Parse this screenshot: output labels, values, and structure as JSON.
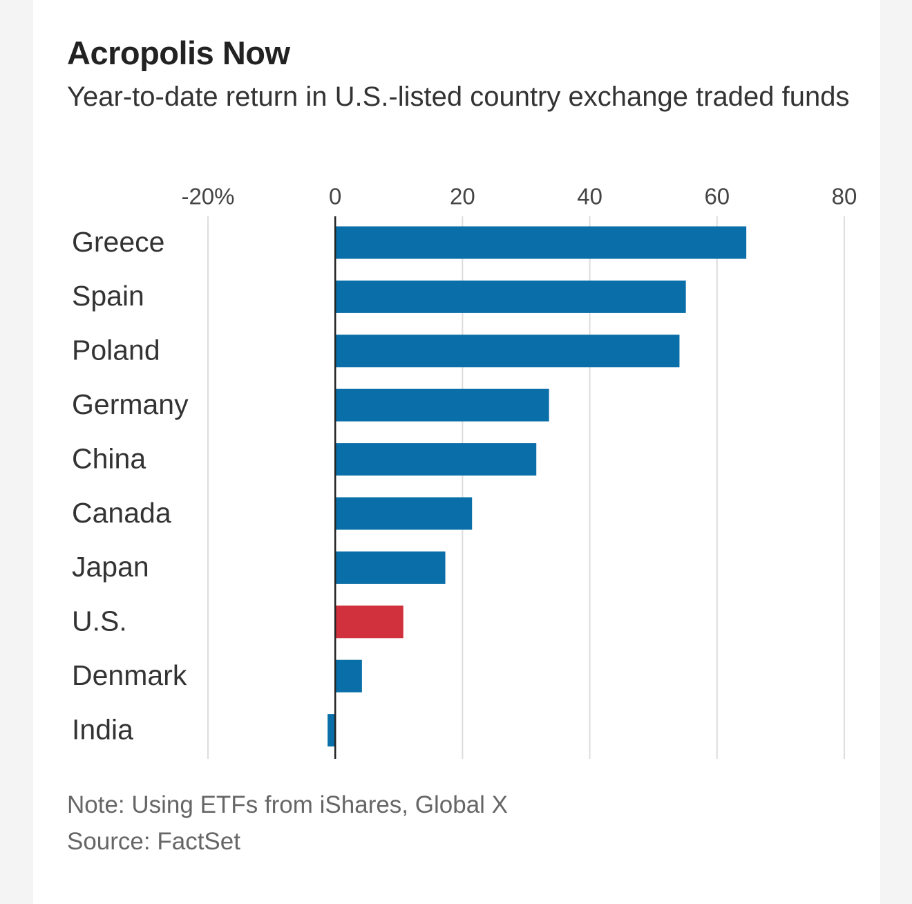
{
  "title": "Acropolis Now",
  "subtitle": "Year-to-date return in U.S.-listed country exchange traded funds",
  "note": "Note: Using ETFs from iShares, Global X",
  "source": "Source: FactSet",
  "chart_data": {
    "type": "bar",
    "orientation": "horizontal",
    "title": "Acropolis Now",
    "subtitle": "Year-to-date return in U.S.-listed country exchange traded funds",
    "categories": [
      "Greece",
      "Spain",
      "Poland",
      "Germany",
      "China",
      "Canada",
      "Japan",
      "U.S.",
      "Denmark",
      "India"
    ],
    "values": [
      64.6,
      55.1,
      54.1,
      33.6,
      31.6,
      21.5,
      17.3,
      10.7,
      4.2,
      -1.2
    ],
    "bar_colors": [
      "#0a6fa8",
      "#0a6fa8",
      "#0a6fa8",
      "#0a6fa8",
      "#0a6fa8",
      "#0a6fa8",
      "#0a6fa8",
      "#d0313d",
      "#0a6fa8",
      "#0a6fa8"
    ],
    "xlim": [
      -20,
      80
    ],
    "ticks": [
      -20,
      0,
      20,
      40,
      60,
      80
    ],
    "tick_labels": [
      "-20%",
      "0",
      "20",
      "40",
      "60",
      "80"
    ],
    "grid": true,
    "xlabel": "",
    "ylabel": ""
  },
  "colors": {
    "bar": "#0a6fa8",
    "highlight": "#d0313d",
    "gridline": "#dddddd",
    "zero_line": "#222222"
  }
}
